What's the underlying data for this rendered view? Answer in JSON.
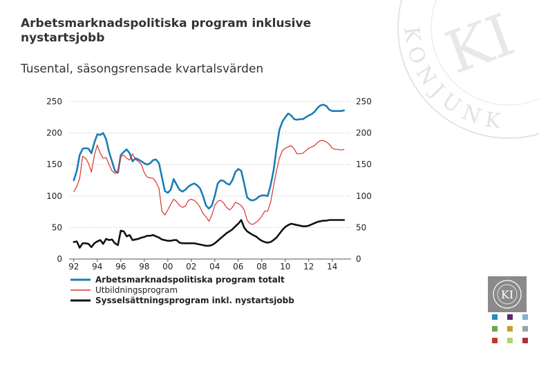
{
  "page": {
    "title": "Arbetsmarknadspolitiska program inklusive nystartsjobb",
    "subtitle": "Tusental, säsongsrensade kvartalsvärden",
    "watermark_text": "KONJUNKTURINSTITUTET",
    "logo_text": "KI"
  },
  "colors": {
    "total": "#1a7db6",
    "utbildning": "#d9302b",
    "syssel": "#111111",
    "grid": "#cfcfcf",
    "swatches": [
      "#2e86c1",
      "#5b2a6e",
      "#7fb3d5",
      "#6aa84f",
      "#c9a227",
      "#9aa3a8",
      "#c0392b",
      "#b7d36b",
      "#b0303a"
    ]
  },
  "chart_data": {
    "type": "line",
    "title": "Arbetsmarknadspolitiska program inklusive nystartsjobb",
    "subtitle": "Tusental, säsongsrensade kvartalsvärden",
    "xlim": [
      1991.6,
      2015.6
    ],
    "ylim": [
      0,
      250
    ],
    "y_ticks": [
      0,
      50,
      100,
      150,
      200,
      250
    ],
    "y_tick_labels": [
      "0",
      "50",
      "100",
      "150",
      "200",
      "250"
    ],
    "x_ticks": [
      1992,
      1994,
      1996,
      1998,
      2000,
      2002,
      2004,
      2006,
      2008,
      2010,
      2012,
      2014
    ],
    "x_tick_labels": [
      "92",
      "94",
      "96",
      "98",
      "00",
      "02",
      "04",
      "06",
      "08",
      "10",
      "12",
      "14"
    ],
    "grid": true,
    "legend_position": "bottom",
    "series": [
      {
        "name": "Arbetsmarknadspolitiska program totalt",
        "color": "#1a7db6",
        "x": [
          1992.0,
          1992.25,
          1992.5,
          1992.75,
          1993.0,
          1993.25,
          1993.5,
          1993.75,
          1994.0,
          1994.25,
          1994.5,
          1994.75,
          1995.0,
          1995.25,
          1995.5,
          1995.75,
          1996.0,
          1996.25,
          1996.5,
          1996.75,
          1997.0,
          1997.25,
          1997.5,
          1997.75,
          1998.0,
          1998.25,
          1998.5,
          1998.75,
          1999.0,
          1999.25,
          1999.5,
          1999.75,
          2000.0,
          2000.25,
          2000.5,
          2000.75,
          2001.0,
          2001.25,
          2001.5,
          2001.75,
          2002.0,
          2002.25,
          2002.5,
          2002.75,
          2003.0,
          2003.25,
          2003.5,
          2003.75,
          2004.0,
          2004.25,
          2004.5,
          2004.75,
          2005.0,
          2005.25,
          2005.5,
          2005.75,
          2006.0,
          2006.25,
          2006.5,
          2006.75,
          2007.0,
          2007.25,
          2007.5,
          2007.75,
          2008.0,
          2008.25,
          2008.5,
          2008.75,
          2009.0,
          2009.25,
          2009.5,
          2009.75,
          2010.0,
          2010.25,
          2010.5,
          2010.75,
          2011.0,
          2011.25,
          2011.5,
          2011.75,
          2012.0,
          2012.25,
          2012.5,
          2012.75,
          2013.0,
          2013.25,
          2013.5,
          2013.75,
          2014.0,
          2014.25,
          2014.5,
          2014.75,
          2015.0
        ],
        "values": [
          125,
          140,
          165,
          175,
          176,
          175,
          168,
          185,
          198,
          197,
          200,
          190,
          170,
          155,
          140,
          137,
          165,
          170,
          174,
          168,
          155,
          160,
          158,
          155,
          152,
          150,
          152,
          157,
          158,
          152,
          130,
          108,
          105,
          110,
          127,
          118,
          110,
          107,
          110,
          115,
          118,
          120,
          117,
          112,
          100,
          85,
          80,
          85,
          100,
          120,
          125,
          124,
          120,
          118,
          125,
          138,
          143,
          140,
          120,
          98,
          94,
          93,
          95,
          99,
          101,
          101,
          100,
          117,
          140,
          175,
          205,
          218,
          225,
          231,
          228,
          222,
          221,
          222,
          222,
          225,
          228,
          230,
          234,
          240,
          244,
          245,
          243,
          237,
          235,
          235,
          235,
          235,
          236
        ]
      },
      {
        "name": "Utbildningsprogram",
        "color": "#d9302b",
        "x": [
          1992.0,
          1992.25,
          1992.5,
          1992.75,
          1993.0,
          1993.25,
          1993.5,
          1993.75,
          1994.0,
          1994.25,
          1994.5,
          1994.75,
          1995.0,
          1995.25,
          1995.5,
          1995.75,
          1996.0,
          1996.25,
          1996.5,
          1996.75,
          1997.0,
          1997.25,
          1997.5,
          1997.75,
          1998.0,
          1998.25,
          1998.5,
          1998.75,
          1999.0,
          1999.25,
          1999.5,
          1999.75,
          2000.0,
          2000.25,
          2000.5,
          2000.75,
          2001.0,
          2001.25,
          2001.5,
          2001.75,
          2002.0,
          2002.25,
          2002.5,
          2002.75,
          2003.0,
          2003.25,
          2003.5,
          2003.75,
          2004.0,
          2004.25,
          2004.5,
          2004.75,
          2005.0,
          2005.25,
          2005.5,
          2005.75,
          2006.0,
          2006.25,
          2006.5,
          2006.75,
          2007.0,
          2007.25,
          2007.5,
          2007.75,
          2008.0,
          2008.25,
          2008.5,
          2008.75,
          2009.0,
          2009.25,
          2009.5,
          2009.75,
          2010.0,
          2010.25,
          2010.5,
          2010.75,
          2011.0,
          2011.25,
          2011.5,
          2011.75,
          2012.0,
          2012.25,
          2012.5,
          2012.75,
          2013.0,
          2013.25,
          2013.5,
          2013.75,
          2014.0,
          2014.25,
          2014.5,
          2014.75,
          2015.0
        ],
        "values": [
          107,
          115,
          128,
          163,
          160,
          152,
          138,
          165,
          181,
          168,
          160,
          161,
          150,
          140,
          136,
          138,
          163,
          165,
          160,
          157,
          167,
          158,
          155,
          150,
          137,
          130,
          129,
          128,
          122,
          112,
          76,
          70,
          78,
          87,
          95,
          91,
          85,
          82,
          84,
          93,
          95,
          93,
          89,
          82,
          72,
          67,
          60,
          70,
          85,
          92,
          93,
          89,
          82,
          78,
          82,
          90,
          88,
          85,
          78,
          62,
          56,
          55,
          58,
          62,
          68,
          76,
          76,
          90,
          115,
          140,
          160,
          172,
          176,
          178,
          180,
          175,
          167,
          167,
          168,
          172,
          176,
          178,
          180,
          185,
          188,
          188,
          186,
          182,
          176,
          174,
          174,
          173,
          174
        ]
      },
      {
        "name": "Sysselsättningsprogram inkl. nystartsjobb",
        "color": "#111111",
        "x": [
          1992.0,
          1992.25,
          1992.5,
          1992.75,
          1993.0,
          1993.25,
          1993.5,
          1993.75,
          1994.0,
          1994.25,
          1994.5,
          1994.75,
          1995.0,
          1995.25,
          1995.5,
          1995.75,
          1996.0,
          1996.25,
          1996.5,
          1996.75,
          1997.0,
          1997.25,
          1997.5,
          1997.75,
          1998.0,
          1998.25,
          1998.5,
          1998.75,
          1999.0,
          1999.25,
          1999.5,
          1999.75,
          2000.0,
          2000.25,
          2000.5,
          2000.75,
          2001.0,
          2001.25,
          2001.5,
          2001.75,
          2002.0,
          2002.25,
          2002.5,
          2002.75,
          2003.0,
          2003.25,
          2003.5,
          2003.75,
          2004.0,
          2004.25,
          2004.5,
          2004.75,
          2005.0,
          2005.25,
          2005.5,
          2005.75,
          2006.0,
          2006.25,
          2006.5,
          2006.75,
          2007.0,
          2007.25,
          2007.5,
          2007.75,
          2008.0,
          2008.25,
          2008.5,
          2008.75,
          2009.0,
          2009.25,
          2009.5,
          2009.75,
          2010.0,
          2010.25,
          2010.5,
          2010.75,
          2011.0,
          2011.25,
          2011.5,
          2011.75,
          2012.0,
          2012.25,
          2012.5,
          2012.75,
          2013.0,
          2013.25,
          2013.5,
          2013.75,
          2014.0,
          2014.25,
          2014.5,
          2014.75,
          2015.0
        ],
        "values": [
          27,
          28,
          18,
          25,
          25,
          24,
          19,
          25,
          28,
          30,
          24,
          32,
          30,
          31,
          25,
          22,
          45,
          44,
          36,
          38,
          30,
          31,
          32,
          34,
          35,
          37,
          37,
          38,
          36,
          34,
          31,
          30,
          29,
          29,
          30,
          30,
          26,
          25,
          25,
          25,
          25,
          25,
          24,
          23,
          22,
          21,
          21,
          22,
          25,
          29,
          33,
          37,
          41,
          44,
          47,
          52,
          56,
          62,
          50,
          44,
          41,
          38,
          36,
          32,
          29,
          27,
          26,
          27,
          30,
          34,
          40,
          46,
          51,
          54,
          56,
          55,
          54,
          53,
          52,
          52,
          53,
          55,
          57,
          59,
          60,
          61,
          61,
          62,
          62,
          62,
          62,
          62,
          62
        ]
      }
    ]
  }
}
